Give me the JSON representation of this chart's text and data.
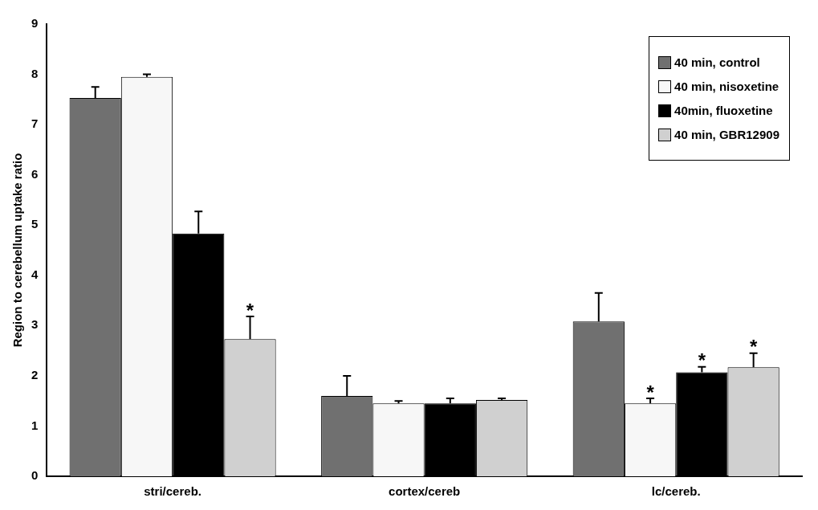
{
  "chart_data": {
    "type": "bar",
    "ylabel": "Region to cerebellum uptake ratio",
    "categories": [
      "stri/cereb.",
      "cortex/cereb",
      "lc/cereb."
    ],
    "series": [
      {
        "name": "40 min, control",
        "color": "#707070",
        "values": [
          7.53,
          1.6,
          3.08
        ],
        "errors": [
          [
            7.53,
            7.75
          ],
          [
            1.6,
            2.0
          ],
          [
            3.08,
            3.65
          ]
        ]
      },
      {
        "name": "40 min, nisoxetine",
        "color": "#f7f7f7",
        "values": [
          7.95,
          1.45,
          1.45
        ],
        "errors": [
          [
            7.95,
            8.0
          ],
          [
            1.45,
            1.5
          ],
          [
            1.45,
            1.55
          ]
        ]
      },
      {
        "name": "40min, fluoxetine",
        "color": "#000000",
        "values": [
          4.83,
          1.45,
          2.07
        ],
        "errors": [
          [
            4.83,
            5.27
          ],
          [
            1.45,
            1.55
          ],
          [
            2.07,
            2.18
          ]
        ]
      },
      {
        "name": "40 min, GBR12909",
        "color": "#d0d0d0",
        "values": [
          2.73,
          1.52,
          2.17
        ],
        "errors": [
          [
            2.73,
            3.18
          ],
          [
            1.52,
            1.55
          ],
          [
            2.17,
            2.45
          ]
        ]
      }
    ],
    "annotations": [
      "*",
      "*",
      "*",
      "*"
    ],
    "ylim": [
      0,
      9
    ],
    "yticks": [
      0,
      1,
      2,
      3,
      4,
      5,
      6,
      7,
      8,
      9
    ],
    "grid": false,
    "legend": "top right"
  }
}
